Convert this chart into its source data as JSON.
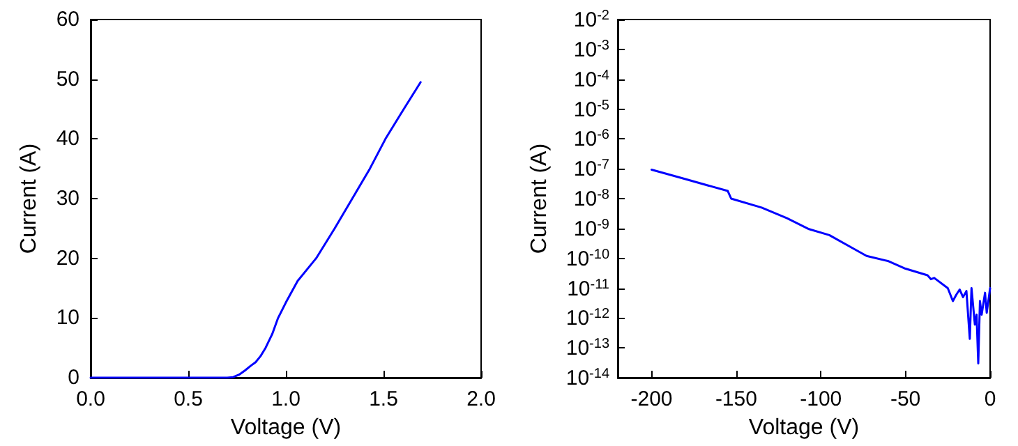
{
  "chart_data": [
    {
      "type": "line",
      "xlabel": "Voltage (V)",
      "ylabel": "Current (A)",
      "xlim": [
        0,
        2
      ],
      "xticks": [
        {
          "value": 0,
          "label": "0.0"
        },
        0.5,
        {
          "value": 1,
          "label": "1.0"
        },
        1.5,
        {
          "value": 2,
          "label": "2.0"
        }
      ],
      "ylim": [
        0,
        60
      ],
      "yticks": [
        0,
        10,
        20,
        30,
        40,
        50,
        60
      ],
      "grid": false,
      "line_style": "solid",
      "marker": "none",
      "series": [
        {
          "color": "#0000ff",
          "x": [
            0,
            0.2,
            0.4,
            0.6,
            0.7,
            0.73,
            0.76,
            0.79,
            0.82,
            0.845,
            0.87,
            0.896,
            0.93,
            0.96,
            1.0,
            1.06,
            1.155,
            1.25,
            1.34,
            1.43,
            1.51,
            1.6,
            1.69
          ],
          "values": [
            0,
            0,
            0,
            0,
            0,
            0.1,
            0.5,
            1.2,
            2.0,
            2.6,
            3.6,
            5,
            7.3,
            10,
            12.6,
            16.2,
            20,
            25,
            30,
            35,
            40,
            44.8,
            49.5
          ]
        }
      ]
    },
    {
      "type": "line",
      "xlabel": "Voltage (V)",
      "ylabel": "Current (A)",
      "xlim": [
        -220,
        0
      ],
      "xticks": [
        -200,
        -150,
        -100,
        -50,
        0
      ],
      "ylim": [
        1e-14,
        0.01
      ],
      "log": "y",
      "grid": false,
      "line_style": "solid",
      "marker": "none",
      "yticks": [
        {
          "value": 1e-14,
          "label": "10$^{-14}$"
        },
        {
          "value": 1e-13,
          "label": "10$^{-13}$"
        },
        {
          "value": 1e-12,
          "label": "10$^{-12}$"
        },
        {
          "value": 1e-11,
          "label": "10$^{-11}$"
        },
        {
          "value": 1e-10,
          "label": "10$^{-10}$"
        },
        {
          "value": 1e-09,
          "label": "10$^{-9}$"
        },
        {
          "value": 1e-08,
          "label": "10$^{-8}$"
        },
        {
          "value": 1e-07,
          "label": "10$^{-7}$"
        },
        {
          "value": 1e-06,
          "label": "10$^{-6}$"
        },
        {
          "value": 1e-05,
          "label": "10$^{-5}$"
        },
        {
          "value": 0.0001,
          "label": "10$^{-4}$"
        },
        {
          "value": 0.001,
          "label": "10$^{-3}$"
        },
        {
          "value": 0.01,
          "label": "10$^{-2}$"
        }
      ],
      "series": [
        {
          "color": "#0000ff",
          "x": [
            -200,
            -180,
            -155,
            -153,
            -135,
            -120,
            -107,
            -95,
            -80,
            -73,
            -60,
            -50,
            -37,
            -35,
            -33,
            -25,
            -22,
            -20,
            -18,
            -16,
            -14,
            -12,
            -11,
            -9,
            -8,
            -7,
            -6,
            -5,
            -3,
            -2,
            0
          ],
          "values": [
            9.3e-08,
            4.5e-08,
            1.8e-08,
            1e-08,
            5e-09,
            2.2e-09,
            9.5e-10,
            6e-10,
            2e-10,
            1.2e-10,
            8e-11,
            4.5e-11,
            2.7e-11,
            2e-11,
            2.2e-11,
            1e-11,
            3.7e-12,
            6e-12,
            9e-12,
            5e-12,
            8e-12,
            2e-13,
            1e-11,
            6e-13,
            1.3e-12,
            3e-14,
            3.7e-12,
            1.3e-12,
            7e-12,
            1.5e-12,
            1e-11
          ]
        }
      ]
    }
  ]
}
